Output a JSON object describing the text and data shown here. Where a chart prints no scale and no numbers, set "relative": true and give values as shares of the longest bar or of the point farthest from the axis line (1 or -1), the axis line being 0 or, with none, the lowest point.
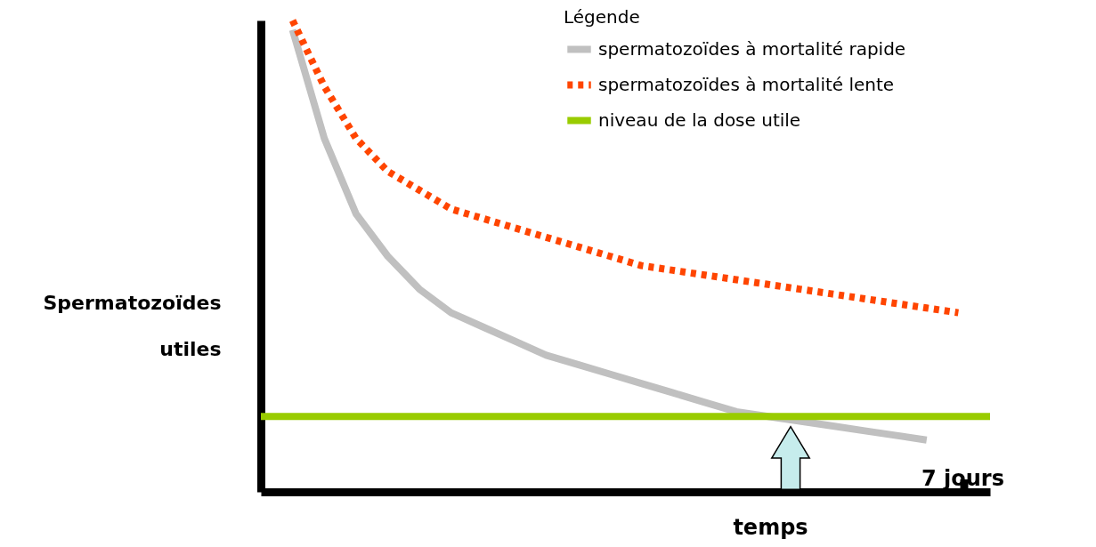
{
  "chart_data": {
    "type": "line",
    "relative": true,
    "xlabel": "temps",
    "ylabel": "Spermatozoïdes utiles",
    "legend_title": "Légende",
    "legend": "top right",
    "marker": "none",
    "annotations": [
      "7 jours"
    ],
    "categories": [
      null,
      null,
      null,
      null,
      null,
      null,
      null,
      null,
      null,
      null,
      null,
      null,
      null,
      null,
      null,
      null,
      null,
      null,
      null,
      null,
      null,
      null,
      null,
      null
    ],
    "series": [
      {
        "name": "spermatozoïdes à mortalité rapide",
        "color": "#c0c0c0",
        "line_style": "solid",
        "values": [
          null,
          0.98,
          0.75,
          0.59,
          0.5,
          0.43,
          0.38,
          0.35,
          0.32,
          0.29,
          0.27,
          0.25,
          0.23,
          0.21,
          0.19,
          0.17,
          0.16,
          0.15,
          0.14,
          0.13,
          0.12,
          0.11,
          null,
          null
        ]
      },
      {
        "name": "spermatozoïdes à mortalité lente",
        "color": "#ff4500",
        "line_style": "dotted",
        "values": [
          null,
          1.0,
          0.86,
          0.75,
          0.68,
          0.64,
          0.6,
          0.58,
          0.56,
          0.54,
          0.52,
          0.5,
          0.48,
          0.47,
          0.46,
          0.45,
          0.44,
          0.43,
          0.42,
          0.41,
          0.4,
          0.39,
          0.38,
          null
        ]
      },
      {
        "name": "niveau de la dose utile",
        "color": "#99cc00",
        "line_style": "solid",
        "values": [
          0.16,
          0.16,
          0.16,
          0.16,
          0.16,
          0.16,
          0.16,
          0.16,
          0.16,
          0.16,
          0.16,
          0.16,
          0.16,
          0.16,
          0.16,
          0.16,
          0.16,
          0.16,
          0.16,
          0.16,
          0.16,
          0.16,
          0.16,
          0.16
        ]
      }
    ]
  }
}
